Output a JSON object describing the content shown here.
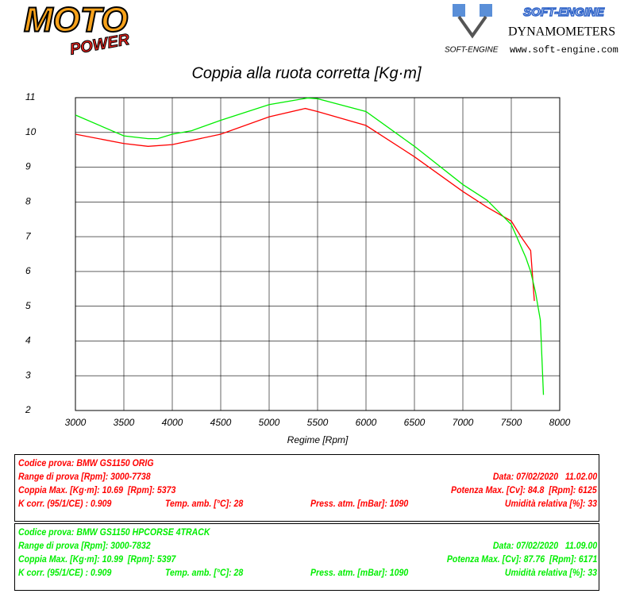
{
  "header": {
    "brand": "MOTO",
    "brand_sub": "POWER",
    "maker": "SOFT-ENGINE",
    "maker_line": "DYNAMOMETERS",
    "maker_small": "SOFT-ENGINE",
    "website": "www.soft-engine.com"
  },
  "chart_data": {
    "type": "line",
    "title": "Coppia alla ruota corretta [Kg·m]",
    "x_label": "Regime [Rpm]",
    "xlim": [
      3000,
      8000
    ],
    "xticks": [
      3000,
      3500,
      4000,
      4500,
      5000,
      5500,
      6000,
      6500,
      7000,
      7500,
      8000
    ],
    "ylim": [
      2,
      11
    ],
    "yticks": [
      2,
      3,
      4,
      5,
      6,
      7,
      8,
      9,
      10,
      11
    ],
    "grid": true,
    "series": [
      {
        "color": "#ff0000",
        "x": [
          3000,
          3500,
          3750,
          4000,
          4500,
          5000,
          5373,
          5500,
          6000,
          6500,
          7000,
          7250,
          7500,
          7600,
          7700,
          7738
        ],
        "values": [
          9.95,
          9.68,
          9.6,
          9.65,
          9.95,
          10.45,
          10.69,
          10.6,
          10.2,
          9.3,
          8.3,
          7.85,
          7.45,
          7.0,
          6.6,
          5.15
        ]
      },
      {
        "color": "#00ee00",
        "x": [
          3000,
          3500,
          3750,
          3850,
          4000,
          4200,
          4500,
          5000,
          5397,
          5500,
          6000,
          6500,
          7000,
          7250,
          7500,
          7650,
          7700,
          7750,
          7800,
          7832
        ],
        "values": [
          10.5,
          9.9,
          9.82,
          9.82,
          9.95,
          10.05,
          10.35,
          10.8,
          10.99,
          10.97,
          10.6,
          9.6,
          8.5,
          8.05,
          7.35,
          6.4,
          6.0,
          5.4,
          4.6,
          2.45
        ]
      }
    ]
  },
  "test_boxes": [
    {
      "color": "#ff0000",
      "rows": [
        [
          "Codice prova: BMW GS1150 ORIG"
        ],
        [
          "Range di prova [Rpm]: 3000-7738",
          "Data: 07/02/2020   11.02.00"
        ],
        [
          "Coppia Max. [Kg·m]: 10.69  [Rpm]: 5373",
          "Potenza Max. [Cv]: 84.8  [Rpm]: 6125"
        ],
        [
          "K corr. (95/1/CE) : 0.909",
          "Temp. amb. [°C]: 28",
          "Press. atm. [mBar]: 1090",
          "Umidità relativa [%]: 33"
        ]
      ]
    },
    {
      "color": "#00ee00",
      "rows": [
        [
          "Codice prova: BMW GS1150 HPCORSE 4TRACK"
        ],
        [
          "Range di prova [Rpm]: 3000-7832",
          "Data: 07/02/2020   11.09.00"
        ],
        [
          "Coppia Max. [Kg·m]: 10.99  [Rpm]: 5397",
          "Potenza Max. [Cv]: 87.76  [Rpm]: 6171"
        ],
        [
          "K corr. (95/1/CE) : 0.909",
          "Temp. amb. [°C]: 28",
          "Press. atm. [mBar]: 1090",
          "Umidità relativa [%]: 33"
        ]
      ]
    }
  ]
}
